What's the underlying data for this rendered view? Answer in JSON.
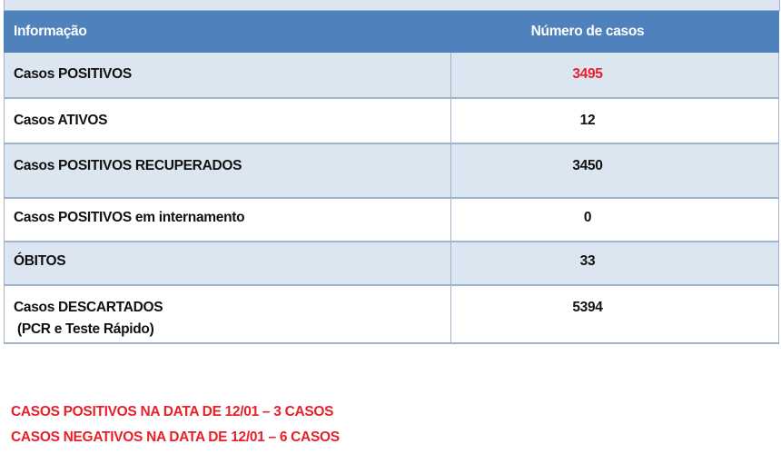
{
  "table": {
    "headers": [
      "Informação",
      "Número de casos"
    ],
    "rows": [
      {
        "label": "Casos POSITIVOS",
        "sublabel": "",
        "value": "3495"
      },
      {
        "label": "Casos ATIVOS",
        "sublabel": "",
        "value": "12"
      },
      {
        "label": "Casos POSITIVOS RECUPERADOS",
        "sublabel": "",
        "value": "3450"
      },
      {
        "label": "Casos POSITIVOS em internamento",
        "sublabel": "",
        "value": "0"
      },
      {
        "label": "ÓBITOS",
        "sublabel": "",
        "value": "33"
      },
      {
        "label": "Casos DESCARTADOS",
        "sublabel": " (PCR e Teste Rápido)",
        "value": "5394"
      }
    ]
  },
  "notes": [
    "CASOS POSITIVOS NA DATA DE 12/01 – 3 CASOS",
    "CASOS NEGATIVOS NA DATA DE 12/01 – 6 CASOS"
  ],
  "colors": {
    "header_bg": "#4f81bd",
    "alt_row_bg": "#dce6f1",
    "highlight_red": "#e8202a"
  }
}
